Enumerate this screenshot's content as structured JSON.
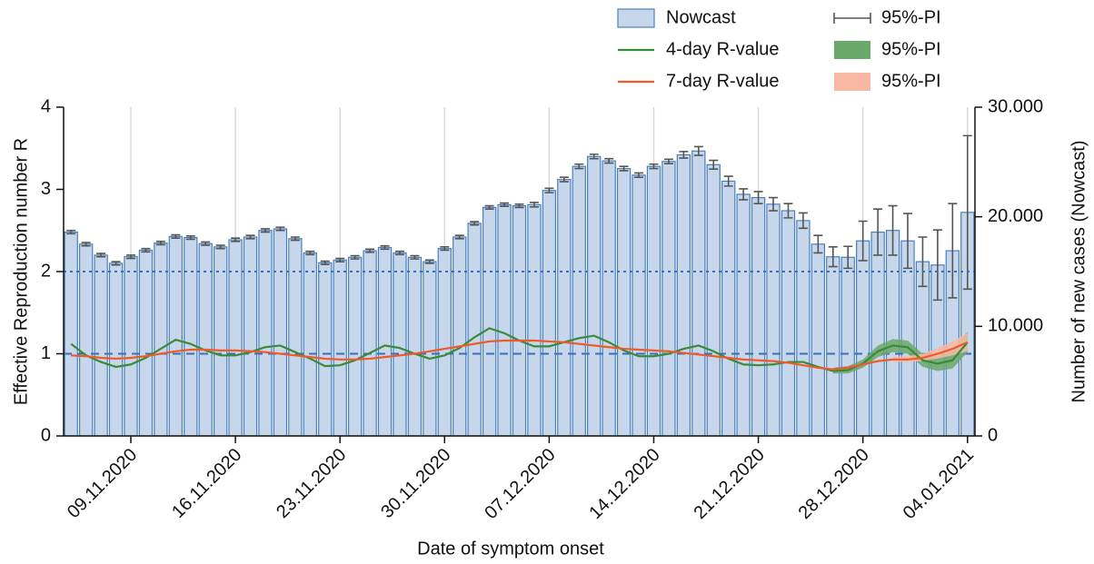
{
  "chart_data": {
    "type": "bar_line",
    "x_label": "Date of symptom onset",
    "y_label": "Effective Reproduction number R",
    "y2_label": "Number of new cases (Nowcast)",
    "categories": [
      null,
      null,
      null,
      null,
      "09.11.2020",
      null,
      null,
      null,
      null,
      null,
      null,
      "16.11.2020",
      null,
      null,
      null,
      null,
      null,
      null,
      "23.11.2020",
      null,
      null,
      null,
      null,
      null,
      null,
      "30.11.2020",
      null,
      null,
      null,
      null,
      null,
      null,
      "07.12.2020",
      null,
      null,
      null,
      null,
      null,
      null,
      "14.12.2020",
      null,
      null,
      null,
      null,
      null,
      null,
      "21.12.2020",
      null,
      null,
      null,
      null,
      null,
      null,
      "28.12.2020",
      null,
      null,
      null,
      null,
      null,
      null,
      "04.01.2021"
    ],
    "ylim": [
      0,
      4
    ],
    "yticks": [
      0,
      1,
      2,
      3,
      4
    ],
    "y2lim": [
      0,
      30000
    ],
    "y2ticks": [
      0,
      {
        "value": 10000,
        "label": "10.000"
      },
      {
        "value": 20000,
        "label": "20.000"
      },
      {
        "value": 30000,
        "label": "30.000"
      }
    ],
    "grid": "x",
    "reference_lines": [
      {
        "value": 1,
        "style": "dashed",
        "color": "#3d6fb6"
      },
      {
        "value": 2,
        "style": "dotted",
        "color": "#3d6fb6"
      }
    ],
    "series": [
      {
        "name": "Nowcast",
        "kind": "bar",
        "axis": "y2",
        "color": "#c6d7eb",
        "edge": "#4a7ebb",
        "pi_label": "95%-PI",
        "pi_color": "#555555",
        "values": [
          18600,
          17500,
          16500,
          15750,
          16350,
          16950,
          17600,
          18200,
          18100,
          17550,
          17250,
          17900,
          18150,
          18750,
          18900,
          18000,
          16700,
          15800,
          16050,
          16300,
          16900,
          17200,
          16700,
          16300,
          15900,
          17100,
          18150,
          19400,
          20850,
          21100,
          21000,
          21100,
          22400,
          23400,
          24600,
          25500,
          25100,
          24400,
          23800,
          24600,
          25050,
          25650,
          26000,
          24750,
          23250,
          22050,
          21750,
          21150,
          20550,
          19650,
          17500,
          16350,
          16300,
          17800,
          18600,
          18750,
          17800,
          15900,
          15600,
          16900,
          20400
        ],
        "errors": [
          150,
          150,
          150,
          150,
          150,
          150,
          150,
          150,
          150,
          150,
          150,
          150,
          150,
          150,
          150,
          150,
          150,
          150,
          150,
          150,
          150,
          150,
          150,
          150,
          150,
          150,
          150,
          150,
          150,
          150,
          150,
          200,
          200,
          200,
          200,
          200,
          200,
          200,
          200,
          200,
          200,
          300,
          400,
          400,
          450,
          500,
          550,
          600,
          650,
          700,
          800,
          900,
          1000,
          1800,
          2100,
          2250,
          2500,
          2250,
          3200,
          4300,
          7000
        ]
      },
      {
        "name": "4-day R-value",
        "kind": "line",
        "color": "#3a8a3a",
        "pi_label": "95%-PI",
        "pi_color": "#6aa86a",
        "values": [
          1.12,
          0.98,
          0.9,
          0.84,
          0.87,
          0.95,
          1.06,
          1.17,
          1.12,
          1.04,
          0.98,
          0.98,
          1.02,
          1.08,
          1.1,
          1.02,
          0.94,
          0.85,
          0.86,
          0.92,
          1.01,
          1.1,
          1.07,
          1.0,
          0.94,
          0.98,
          1.07,
          1.2,
          1.31,
          1.25,
          1.16,
          1.09,
          1.09,
          1.14,
          1.19,
          1.22,
          1.14,
          1.04,
          0.97,
          0.97,
          1.0,
          1.06,
          1.1,
          1.03,
          0.94,
          0.87,
          0.86,
          0.87,
          0.9,
          0.9,
          0.84,
          0.79,
          0.8,
          0.88,
          1.03,
          1.1,
          1.08,
          0.92,
          0.88,
          0.92,
          1.14
        ],
        "pi_low": [
          null,
          null,
          null,
          null,
          null,
          null,
          null,
          null,
          null,
          null,
          null,
          null,
          null,
          null,
          null,
          null,
          null,
          null,
          null,
          null,
          null,
          null,
          null,
          null,
          null,
          null,
          null,
          null,
          null,
          null,
          null,
          null,
          null,
          null,
          null,
          null,
          null,
          null,
          null,
          null,
          null,
          null,
          null,
          null,
          null,
          null,
          null,
          null,
          null,
          null,
          null,
          0.76,
          0.76,
          0.83,
          0.96,
          1.02,
          1.0,
          0.84,
          0.79,
          0.82,
          1.02
        ],
        "pi_high": [
          null,
          null,
          null,
          null,
          null,
          null,
          null,
          null,
          null,
          null,
          null,
          null,
          null,
          null,
          null,
          null,
          null,
          null,
          null,
          null,
          null,
          null,
          null,
          null,
          null,
          null,
          null,
          null,
          null,
          null,
          null,
          null,
          null,
          null,
          null,
          null,
          null,
          null,
          null,
          null,
          null,
          null,
          null,
          null,
          null,
          null,
          null,
          null,
          null,
          null,
          null,
          0.83,
          0.85,
          0.93,
          1.1,
          1.18,
          1.16,
          1.0,
          0.97,
          1.03,
          1.27
        ]
      },
      {
        "name": "7-day R-value",
        "kind": "line",
        "color": "#f05a28",
        "pi_label": "95%-PI",
        "pi_color": "#f9b8a4",
        "values": [
          0.98,
          0.97,
          0.95,
          0.94,
          0.95,
          0.97,
          1.0,
          1.03,
          1.05,
          1.05,
          1.04,
          1.04,
          1.03,
          1.02,
          1.0,
          0.98,
          0.96,
          0.94,
          0.93,
          0.93,
          0.94,
          0.96,
          0.98,
          1.0,
          1.03,
          1.06,
          1.09,
          1.12,
          1.15,
          1.16,
          1.16,
          1.16,
          1.15,
          1.14,
          1.12,
          1.1,
          1.08,
          1.06,
          1.05,
          1.04,
          1.03,
          1.01,
          0.99,
          0.97,
          0.95,
          0.93,
          0.92,
          0.91,
          0.89,
          0.86,
          0.83,
          0.81,
          0.83,
          0.87,
          0.91,
          0.93,
          0.93,
          0.95,
          1.0,
          1.06,
          1.14
        ],
        "pi_low": [
          null,
          null,
          null,
          null,
          null,
          null,
          null,
          null,
          null,
          null,
          null,
          null,
          null,
          null,
          null,
          null,
          null,
          null,
          null,
          null,
          null,
          null,
          null,
          null,
          null,
          null,
          null,
          null,
          null,
          null,
          null,
          null,
          null,
          null,
          null,
          null,
          null,
          null,
          null,
          null,
          null,
          null,
          null,
          null,
          null,
          null,
          null,
          null,
          null,
          null,
          null,
          null,
          null,
          null,
          null,
          0.9,
          0.9,
          0.91,
          0.94,
          0.98,
          1.03
        ],
        "pi_high": [
          null,
          null,
          null,
          null,
          null,
          null,
          null,
          null,
          null,
          null,
          null,
          null,
          null,
          null,
          null,
          null,
          null,
          null,
          null,
          null,
          null,
          null,
          null,
          null,
          null,
          null,
          null,
          null,
          null,
          null,
          null,
          null,
          null,
          null,
          null,
          null,
          null,
          null,
          null,
          null,
          null,
          null,
          null,
          null,
          null,
          null,
          null,
          null,
          null,
          null,
          null,
          null,
          null,
          null,
          null,
          0.96,
          0.97,
          1.0,
          1.07,
          1.15,
          1.25
        ]
      }
    ]
  }
}
